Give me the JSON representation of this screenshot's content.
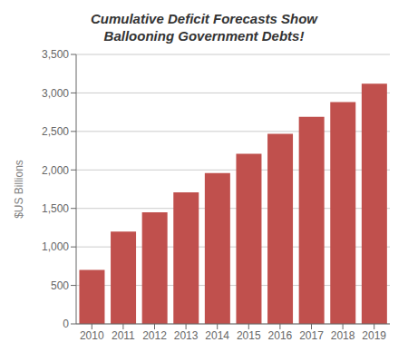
{
  "chart_data": {
    "type": "bar",
    "title": "Cumulative Deficit Forecasts Show\nBallooning Government Debts!",
    "ylabel": "$US Billions",
    "categories": [
      "2010",
      "2011",
      "2012",
      "2013",
      "2014",
      "2015",
      "2016",
      "2017",
      "2018",
      "2019"
    ],
    "values": [
      700,
      1200,
      1450,
      1710,
      1960,
      2210,
      2470,
      2690,
      2880,
      3120
    ],
    "color": "#C0504D",
    "ylim": [
      0,
      3500
    ],
    "yticks": [
      0,
      500,
      {
        "value": 1000,
        "label": "1,000"
      },
      {
        "value": 1500,
        "label": "1,500"
      },
      {
        "value": 2000,
        "label": "2,000"
      },
      {
        "value": 2500,
        "label": "2,500"
      },
      {
        "value": 3000,
        "label": "3,000"
      },
      {
        "value": 3500,
        "label": "3,500"
      }
    ],
    "grid": true
  }
}
